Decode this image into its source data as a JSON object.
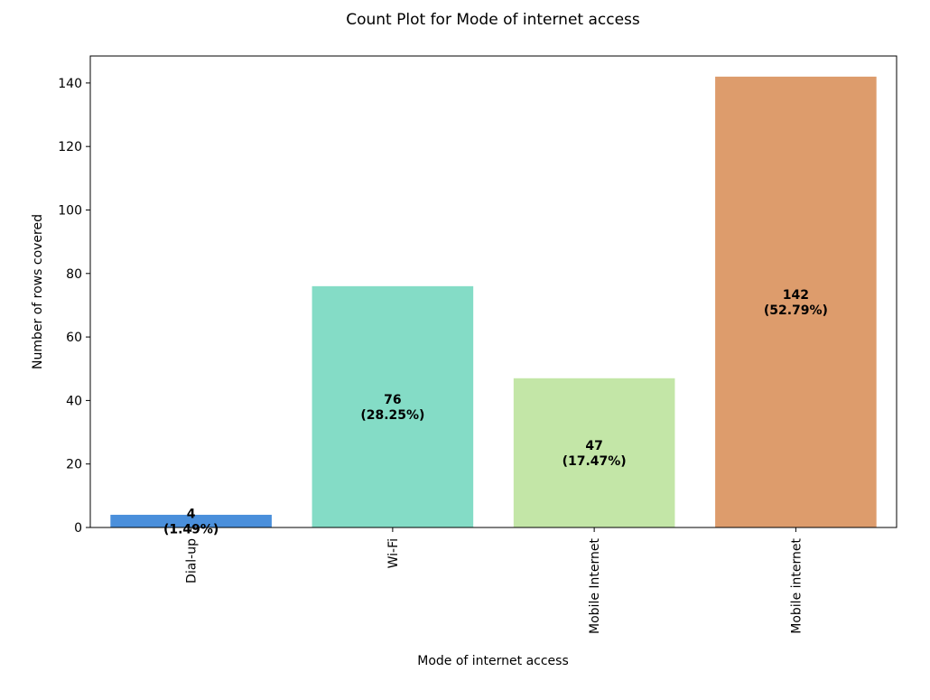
{
  "chart_data": {
    "type": "bar",
    "title": "Count Plot for Mode of internet access",
    "xlabel": "Mode of internet access",
    "ylabel": "Number of rows covered",
    "categories": [
      "Dial-up",
      "Wi-Fi",
      "Mobile Internet",
      "Mobile internet"
    ],
    "values": [
      4,
      76,
      47,
      142
    ],
    "bar_labels": [
      [
        "4",
        "(1.49%)"
      ],
      [
        "76",
        "(28.25%)"
      ],
      [
        "47",
        "(17.47%)"
      ],
      [
        "142",
        "(52.79%)"
      ]
    ],
    "colors": [
      "#4a8fdb",
      "#84dcc6",
      "#c3e6a7",
      "#dd9c6c"
    ],
    "ylim": [
      0,
      148.5
    ],
    "yticks": [
      0,
      20,
      40,
      60,
      80,
      100,
      120,
      140
    ],
    "grid": false,
    "legend": "none"
  }
}
